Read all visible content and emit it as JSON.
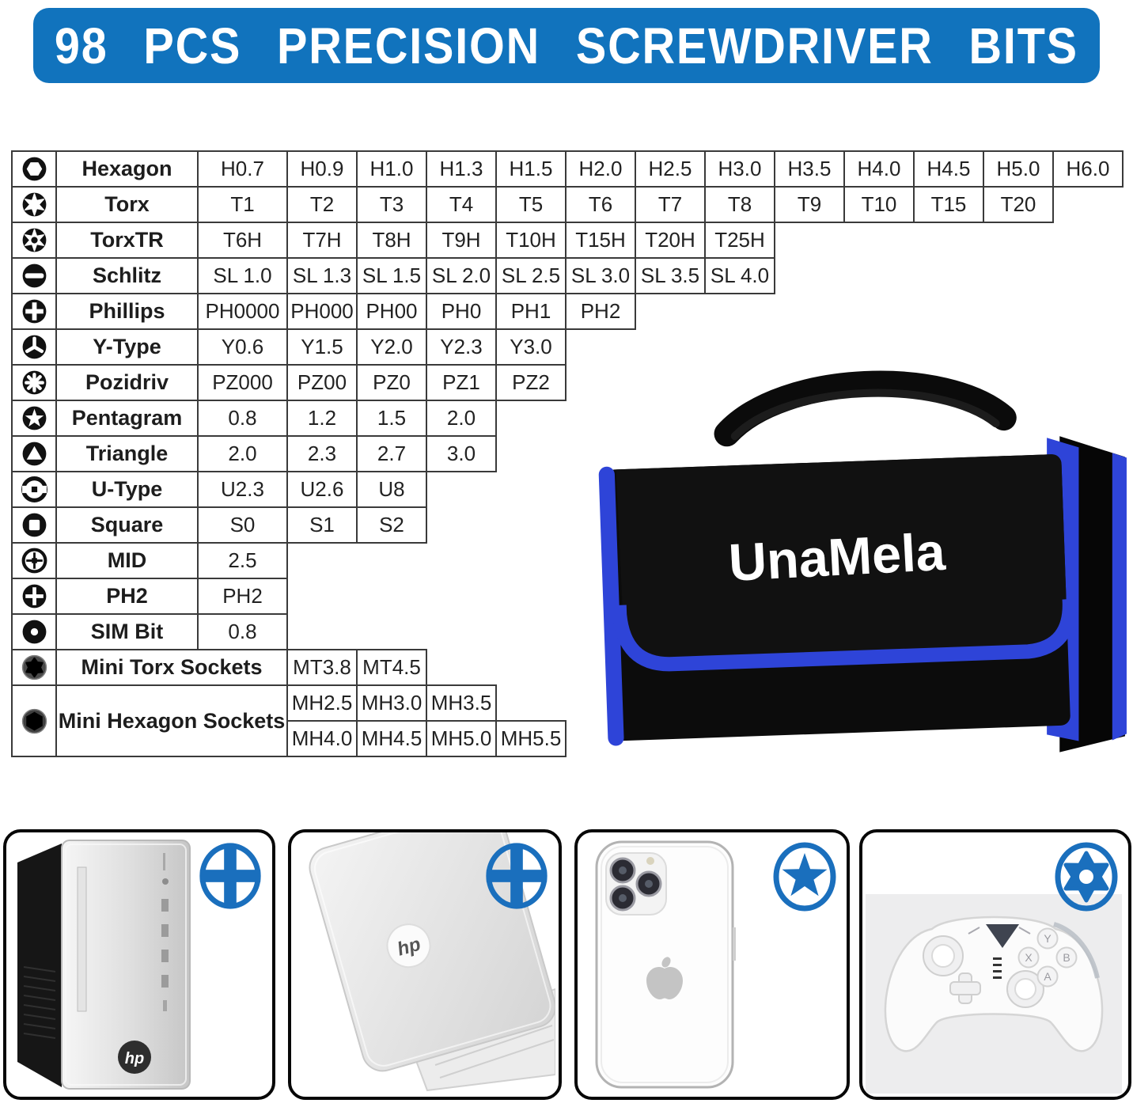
{
  "title": "98 PCS PRECISION SCREWDRIVER BITS",
  "colors": {
    "banner_blue": "#1173bd",
    "bag_trim_blue": "#2e44d8",
    "screw_icon_blue": "#1a6fbd",
    "table_border": "#3a3a3a"
  },
  "table": {
    "rows": [
      {
        "icon": "hexagon-bit-icon",
        "label": "Hexagon",
        "values": [
          "H0.7",
          "H0.9",
          "H1.0",
          "H1.3",
          "H1.5",
          "H2.0",
          "H2.5",
          "H3.0",
          "H3.5",
          "H4.0",
          "H4.5",
          "H5.0",
          "H6.0"
        ]
      },
      {
        "icon": "torx-bit-icon",
        "label": "Torx",
        "values": [
          "T1",
          "T2",
          "T3",
          "T4",
          "T5",
          "T6",
          "T7",
          "T8",
          "T9",
          "T10",
          "T15",
          "T20"
        ]
      },
      {
        "icon": "torx-tr-bit-icon",
        "label": "TorxTR",
        "values": [
          "T6H",
          "T7H",
          "T8H",
          "T9H",
          "T10H",
          "T15H",
          "T20H",
          "T25H"
        ]
      },
      {
        "icon": "slotted-bit-icon",
        "label": "Schlitz",
        "values": [
          "SL 1.0",
          "SL 1.3",
          "SL 1.5",
          "SL 2.0",
          "SL 2.5",
          "SL 3.0",
          "SL 3.5",
          "SL 4.0"
        ]
      },
      {
        "icon": "phillips-bit-icon",
        "label": "Phillips",
        "values": [
          "PH0000",
          "PH000",
          "PH00",
          "PH0",
          "PH1",
          "PH2"
        ]
      },
      {
        "icon": "y-type-bit-icon",
        "label": "Y-Type",
        "values": [
          "Y0.6",
          "Y1.5",
          "Y2.0",
          "Y2.3",
          "Y3.0"
        ]
      },
      {
        "icon": "pozidriv-bit-icon",
        "label": "Pozidriv",
        "values": [
          "PZ000",
          "PZ00",
          "PZ0",
          "PZ1",
          "PZ2"
        ]
      },
      {
        "icon": "pentagram-bit-icon",
        "label": "Pentagram",
        "values": [
          "0.8",
          "1.2",
          "1.5",
          "2.0"
        ]
      },
      {
        "icon": "triangle-bit-icon",
        "label": "Triangle",
        "values": [
          "2.0",
          "2.3",
          "2.7",
          "3.0"
        ]
      },
      {
        "icon": "u-type-bit-icon",
        "label": "U-Type",
        "values": [
          "U2.3",
          "U2.6",
          "U8"
        ]
      },
      {
        "icon": "square-bit-icon",
        "label": "Square",
        "values": [
          "S0",
          "S1",
          "S2"
        ]
      },
      {
        "icon": "mid-bit-icon",
        "label": "MID",
        "values": [
          "2.5"
        ]
      },
      {
        "icon": "ph2-bit-icon",
        "label": "PH2",
        "values": [
          "PH2"
        ]
      },
      {
        "icon": "sim-bit-icon",
        "label": "SIM Bit",
        "values": [
          "0.8"
        ]
      },
      {
        "icon": "mini-torx-socket-icon",
        "label": "Mini Torx Sockets",
        "wide_label": true,
        "values": [
          "MT3.8",
          "MT4.5"
        ]
      },
      {
        "icon": "mini-hexagon-socket-icon",
        "label": "Mini Hexagon Sockets",
        "wide_label": true,
        "value_rows": [
          [
            "MH2.5",
            "MH3.0",
            "MH3.5"
          ],
          [
            "MH4.0",
            "MH4.5",
            "MH5.0",
            "MH5.5"
          ]
        ]
      }
    ]
  },
  "bag": {
    "brand": "UnaMela"
  },
  "products": [
    {
      "name": "desktop-pc",
      "logo": "hp",
      "bit_icon": "phillips-screw-icon"
    },
    {
      "name": "laptop",
      "logo": "hp",
      "bit_icon": "phillips-screw-icon"
    },
    {
      "name": "smartphone",
      "bit_icon": "pentalobe-screw-icon"
    },
    {
      "name": "game-controller",
      "bit_icon": "torx-security-screw-icon",
      "button_labels": [
        "Y",
        "X",
        "B",
        "A"
      ]
    }
  ]
}
